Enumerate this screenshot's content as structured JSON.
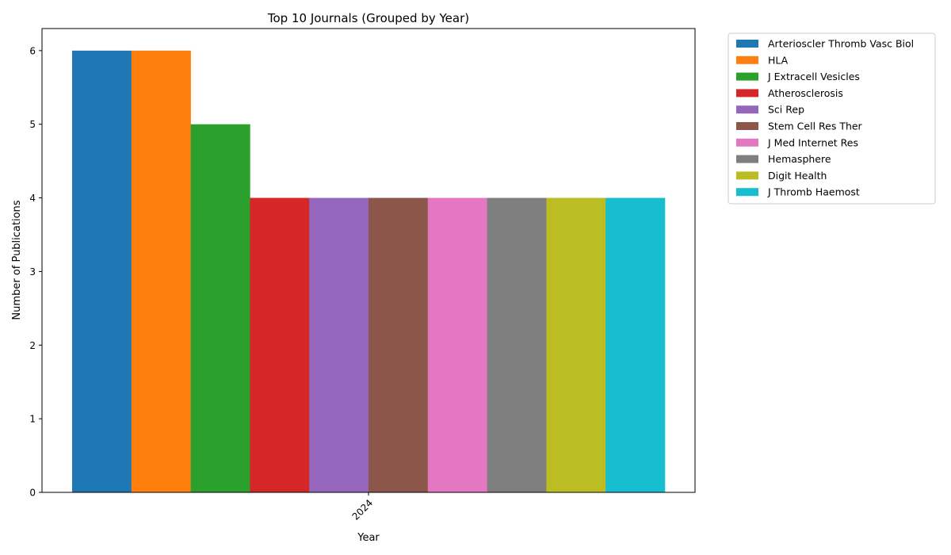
{
  "chart_data": {
    "type": "bar",
    "title": "Top 10 Journals (Grouped by Year)",
    "xlabel": "Year",
    "ylabel": "Number of Publications",
    "categories": [
      "2024"
    ],
    "ylim": [
      0,
      6.3
    ],
    "yticks": [
      0,
      1,
      2,
      3,
      4,
      5,
      6
    ],
    "grid": false,
    "legend_position": "outside-top-right",
    "series": [
      {
        "name": "Arterioscler Thromb Vasc Biol",
        "values": [
          6
        ],
        "color": "#1f77b4"
      },
      {
        "name": "HLA",
        "values": [
          6
        ],
        "color": "#ff7f0e"
      },
      {
        "name": "J Extracell Vesicles",
        "values": [
          5
        ],
        "color": "#2ca02c"
      },
      {
        "name": "Atherosclerosis",
        "values": [
          4
        ],
        "color": "#d62728"
      },
      {
        "name": "Sci Rep",
        "values": [
          4
        ],
        "color": "#9467bd"
      },
      {
        "name": "Stem Cell Res Ther",
        "values": [
          4
        ],
        "color": "#8c564b"
      },
      {
        "name": "J Med Internet Res",
        "values": [
          4
        ],
        "color": "#e377c2"
      },
      {
        "name": "Hemasphere",
        "values": [
          4
        ],
        "color": "#7f7f7f"
      },
      {
        "name": "Digit Health",
        "values": [
          4
        ],
        "color": "#bcbd22"
      },
      {
        "name": "J Thromb Haemost",
        "values": [
          4
        ],
        "color": "#17becf"
      }
    ]
  }
}
